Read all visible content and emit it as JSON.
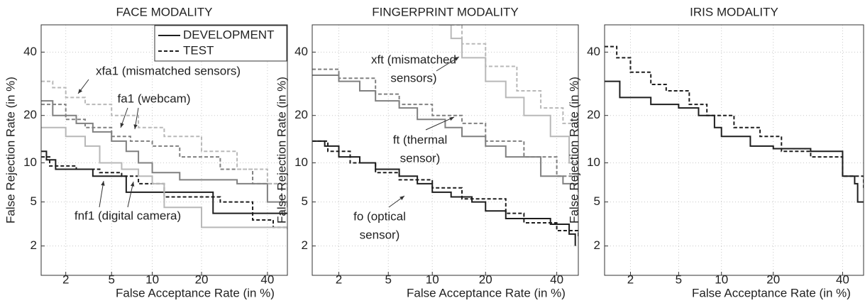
{
  "chart_data": [
    {
      "type": "step-line",
      "title": "FACE MODALITY",
      "x_label": "False Acceptance Rate (in %)",
      "y_label": "False Rejection Rate (in %)",
      "xscale": "probit",
      "yscale": "probit",
      "grid": true,
      "xlim": [
        1.15,
        47
      ],
      "ylim": [
        1,
        50
      ],
      "xticks": [
        2,
        5,
        10,
        20,
        40
      ],
      "yticks": [
        2,
        5,
        10,
        20,
        40
      ],
      "legend": {
        "position": "upper right",
        "entries": [
          {
            "label": "DEVELOPMENT",
            "dash": "solid"
          },
          {
            "label": "TEST",
            "dash": "dashed"
          }
        ]
      },
      "annotations": [
        [
          "xfa1 (mismatched sensors)"
        ],
        [
          "fa1 (webcam)"
        ],
        [
          "fnf1 (digital camera)"
        ]
      ],
      "series": [
        {
          "color": "#1e1e1e",
          "dash": "solid",
          "x": [
            1.15,
            1.3,
            1.6,
            3.5,
            6.5,
            13,
            23,
            47
          ],
          "values": [
            12,
            10.5,
            9,
            8,
            6,
            6,
            4,
            4
          ]
        },
        {
          "color": "#1e1e1e",
          "dash": "dashed",
          "x": [
            1.15,
            1.4,
            2.5,
            4,
            6,
            8,
            12,
            25,
            35,
            42,
            47
          ],
          "values": [
            11,
            9.5,
            9,
            8.5,
            8,
            7,
            5.5,
            5,
            3.5,
            3,
            2.9
          ]
        },
        {
          "color": "#808080",
          "dash": "solid",
          "x": [
            1.15,
            1.5,
            2.5,
            3.5,
            5,
            6.5,
            8,
            10,
            15,
            30,
            40,
            47
          ],
          "values": [
            24,
            20,
            18,
            16,
            14,
            12,
            10,
            8.5,
            7.5,
            7,
            5,
            4.5
          ]
        },
        {
          "color": "#808080",
          "dash": "dashed",
          "x": [
            1.15,
            2,
            3,
            5,
            7,
            10,
            15,
            25,
            35,
            45,
            47
          ],
          "values": [
            23,
            19,
            17,
            15,
            14,
            13,
            11,
            9,
            7,
            5,
            5
          ]
        },
        {
          "color": "#b8b8b8",
          "dash": "solid",
          "x": [
            1.15,
            2,
            3,
            4,
            6,
            8,
            10,
            12,
            20,
            47
          ],
          "values": [
            17,
            15,
            13,
            10,
            9,
            8,
            7,
            4.5,
            3,
            3
          ]
        },
        {
          "color": "#b8b8b8",
          "dash": "dashed",
          "x": [
            1.15,
            1.5,
            2,
            3,
            5,
            8,
            12,
            20,
            30,
            40,
            47
          ],
          "values": [
            30,
            28,
            25,
            23,
            20,
            17,
            15,
            12,
            9,
            7,
            6
          ]
        }
      ]
    },
    {
      "type": "step-line",
      "title": "FINGERPRINT MODALITY",
      "x_label": "False Acceptance Rate (in %)",
      "y_label": "False Rejection Rate (in %)",
      "xscale": "probit",
      "yscale": "probit",
      "grid": true,
      "xlim": [
        1.15,
        47
      ],
      "ylim": [
        1,
        50
      ],
      "xticks": [
        2,
        5,
        10,
        20,
        40
      ],
      "yticks": [
        2,
        5,
        10,
        20,
        40
      ],
      "annotations": [
        [
          "xft (mismatched",
          "sensors)"
        ],
        [
          "ft (thermal",
          "sensor)"
        ],
        [
          "fo (optical",
          "sensor)"
        ]
      ],
      "series": [
        {
          "color": "#1e1e1e",
          "dash": "solid",
          "x": [
            1.15,
            1.5,
            2,
            3,
            4,
            6,
            8,
            10,
            13,
            17,
            20,
            25,
            38,
            44,
            46
          ],
          "values": [
            14,
            13,
            11,
            10,
            9,
            8,
            7,
            6,
            5.5,
            5,
            4.2,
            3.6,
            3.2,
            2.6,
            2
          ]
        },
        {
          "color": "#1e1e1e",
          "dash": "dashed",
          "x": [
            1.15,
            1.6,
            2.5,
            4,
            6,
            10,
            15,
            25,
            30,
            40,
            47
          ],
          "values": [
            14,
            12,
            10,
            8.5,
            7.5,
            6.5,
            5.3,
            4,
            3.3,
            2.8,
            2.4
          ]
        },
        {
          "color": "#808080",
          "dash": "solid",
          "x": [
            1.15,
            2,
            3,
            4,
            6,
            8,
            12,
            15,
            20,
            25,
            35,
            42,
            47
          ],
          "values": [
            32,
            30,
            27,
            24,
            22,
            19,
            17,
            15,
            13,
            11,
            8,
            7,
            6
          ]
        },
        {
          "color": "#808080",
          "dash": "dashed",
          "x": [
            1.15,
            2,
            4,
            6,
            10,
            15,
            20,
            30,
            40,
            47
          ],
          "values": [
            34,
            31,
            26,
            23,
            20,
            18,
            14,
            11,
            8,
            6.5
          ]
        },
        {
          "color": "#b8b8b8",
          "dash": "solid",
          "x": [
            11,
            13,
            15,
            20,
            25,
            30,
            38,
            44,
            47
          ],
          "values": [
            50,
            45,
            38,
            30,
            25,
            20,
            15,
            10,
            10
          ]
        },
        {
          "color": "#b8b8b8",
          "dash": "dashed",
          "x": [
            12,
            15,
            20,
            28,
            35,
            42,
            47
          ],
          "values": [
            50,
            43,
            35,
            27,
            22,
            18,
            16
          ]
        }
      ]
    },
    {
      "type": "step-line",
      "title": "IRIS MODALITY",
      "x_label": "False Acceptance Rate (in %)",
      "y_label": "False Rejection Rate (in %)",
      "xscale": "probit",
      "yscale": "probit",
      "grid": true,
      "xlim": [
        1.15,
        47
      ],
      "ylim": [
        1,
        50
      ],
      "xticks": [
        2,
        5,
        10,
        20,
        40
      ],
      "yticks": [
        2,
        5,
        10,
        20,
        40
      ],
      "series": [
        {
          "color": "#1e1e1e",
          "dash": "solid",
          "x": [
            1.15,
            1.6,
            3,
            5,
            7,
            9,
            10,
            15,
            20,
            30,
            40,
            44,
            45,
            47
          ],
          "values": [
            30,
            25,
            23,
            22,
            20,
            17,
            15,
            13,
            12.5,
            12,
            8,
            7,
            5,
            5
          ]
        },
        {
          "color": "#1e1e1e",
          "dash": "dashed",
          "x": [
            1.15,
            1.5,
            2,
            3,
            4,
            6,
            8,
            12,
            17,
            22,
            30,
            40,
            47
          ],
          "values": [
            42,
            38,
            33,
            29,
            27,
            23,
            20,
            17,
            15,
            12,
            11,
            8,
            6.5
          ]
        }
      ]
    }
  ]
}
